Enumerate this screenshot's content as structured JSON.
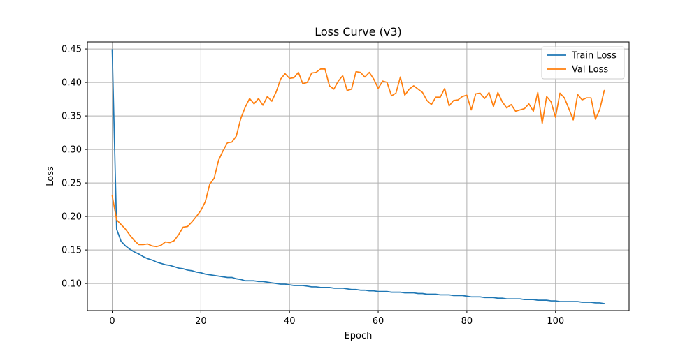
{
  "chart_data": {
    "type": "line",
    "title": "Loss Curve (v3)",
    "xlabel": "Epoch",
    "ylabel": "Loss",
    "xlim": [
      -5.6,
      116.6
    ],
    "ylim": [
      0.0595,
      0.4605
    ],
    "xticks": [
      0,
      20,
      40,
      60,
      80,
      100
    ],
    "yticks": [
      0.1,
      0.15,
      0.2,
      0.25,
      0.3,
      0.35,
      0.4,
      0.45
    ],
    "grid": true,
    "legend_position": "top-right",
    "series": [
      {
        "name": "Train Loss",
        "color": "#1f77b4",
        "x": [
          0,
          1,
          2,
          3,
          4,
          5,
          6,
          7,
          8,
          9,
          10,
          11,
          12,
          13,
          14,
          15,
          16,
          17,
          18,
          19,
          20,
          21,
          22,
          23,
          24,
          25,
          26,
          27,
          28,
          29,
          30,
          31,
          32,
          33,
          34,
          35,
          36,
          37,
          38,
          39,
          40,
          41,
          42,
          43,
          44,
          45,
          46,
          47,
          48,
          49,
          50,
          51,
          52,
          53,
          54,
          55,
          56,
          57,
          58,
          59,
          60,
          61,
          62,
          63,
          64,
          65,
          66,
          67,
          68,
          69,
          70,
          71,
          72,
          73,
          74,
          75,
          76,
          77,
          78,
          79,
          80,
          81,
          82,
          83,
          84,
          85,
          86,
          87,
          88,
          89,
          90,
          91,
          92,
          93,
          94,
          95,
          96,
          97,
          98,
          99,
          100,
          101,
          102,
          103,
          104,
          105,
          106,
          107,
          108,
          109,
          110,
          111
        ],
        "values": [
          0.449,
          0.181,
          0.163,
          0.156,
          0.151,
          0.147,
          0.144,
          0.14,
          0.137,
          0.135,
          0.132,
          0.13,
          0.128,
          0.127,
          0.125,
          0.123,
          0.122,
          0.12,
          0.119,
          0.117,
          0.116,
          0.114,
          0.113,
          0.112,
          0.111,
          0.11,
          0.109,
          0.109,
          0.107,
          0.106,
          0.104,
          0.104,
          0.104,
          0.103,
          0.103,
          0.102,
          0.101,
          0.1,
          0.099,
          0.099,
          0.098,
          0.097,
          0.097,
          0.097,
          0.096,
          0.095,
          0.095,
          0.094,
          0.094,
          0.094,
          0.093,
          0.093,
          0.093,
          0.092,
          0.091,
          0.091,
          0.09,
          0.09,
          0.089,
          0.089,
          0.088,
          0.088,
          0.088,
          0.087,
          0.087,
          0.087,
          0.086,
          0.086,
          0.086,
          0.085,
          0.085,
          0.084,
          0.084,
          0.084,
          0.083,
          0.083,
          0.083,
          0.082,
          0.082,
          0.082,
          0.081,
          0.08,
          0.08,
          0.08,
          0.079,
          0.079,
          0.079,
          0.078,
          0.078,
          0.077,
          0.077,
          0.077,
          0.077,
          0.076,
          0.076,
          0.076,
          0.075,
          0.075,
          0.075,
          0.074,
          0.074,
          0.073,
          0.073,
          0.073,
          0.073,
          0.073,
          0.072,
          0.072,
          0.072,
          0.071,
          0.071,
          0.07
        ]
      },
      {
        "name": "Val Loss",
        "color": "#ff7f0e",
        "x": [
          0,
          1,
          2,
          3,
          4,
          5,
          6,
          7,
          8,
          9,
          10,
          11,
          12,
          13,
          14,
          15,
          16,
          17,
          18,
          19,
          20,
          21,
          22,
          23,
          24,
          25,
          26,
          27,
          28,
          29,
          30,
          31,
          32,
          33,
          34,
          35,
          36,
          37,
          38,
          39,
          40,
          41,
          42,
          43,
          44,
          45,
          46,
          47,
          48,
          49,
          50,
          51,
          52,
          53,
          54,
          55,
          56,
          57,
          58,
          59,
          60,
          61,
          62,
          63,
          64,
          65,
          66,
          67,
          68,
          69,
          70,
          71,
          72,
          73,
          74,
          75,
          76,
          77,
          78,
          79,
          80,
          81,
          82,
          83,
          84,
          85,
          86,
          87,
          88,
          89,
          90,
          91,
          92,
          93,
          94,
          95,
          96,
          97,
          98,
          99,
          100,
          101,
          102,
          103,
          104,
          105,
          106,
          107,
          108,
          109,
          110,
          111
        ],
        "values": [
          0.231,
          0.195,
          0.188,
          0.181,
          0.172,
          0.164,
          0.158,
          0.158,
          0.159,
          0.156,
          0.155,
          0.157,
          0.162,
          0.161,
          0.164,
          0.173,
          0.184,
          0.185,
          0.192,
          0.2,
          0.209,
          0.222,
          0.248,
          0.257,
          0.284,
          0.298,
          0.31,
          0.311,
          0.32,
          0.346,
          0.363,
          0.376,
          0.368,
          0.376,
          0.366,
          0.379,
          0.372,
          0.386,
          0.405,
          0.413,
          0.406,
          0.407,
          0.415,
          0.398,
          0.4,
          0.414,
          0.415,
          0.42,
          0.42,
          0.395,
          0.39,
          0.402,
          0.41,
          0.388,
          0.39,
          0.416,
          0.415,
          0.408,
          0.415,
          0.405,
          0.391,
          0.402,
          0.4,
          0.38,
          0.384,
          0.408,
          0.381,
          0.39,
          0.395,
          0.39,
          0.385,
          0.373,
          0.367,
          0.378,
          0.378,
          0.391,
          0.365,
          0.373,
          0.374,
          0.379,
          0.381,
          0.359,
          0.383,
          0.384,
          0.376,
          0.385,
          0.364,
          0.385,
          0.371,
          0.362,
          0.367,
          0.357,
          0.359,
          0.361,
          0.368,
          0.357,
          0.385,
          0.339,
          0.379,
          0.371,
          0.348,
          0.384,
          0.377,
          0.361,
          0.344,
          0.382,
          0.374,
          0.377,
          0.377,
          0.345,
          0.36,
          0.388
        ]
      }
    ]
  }
}
